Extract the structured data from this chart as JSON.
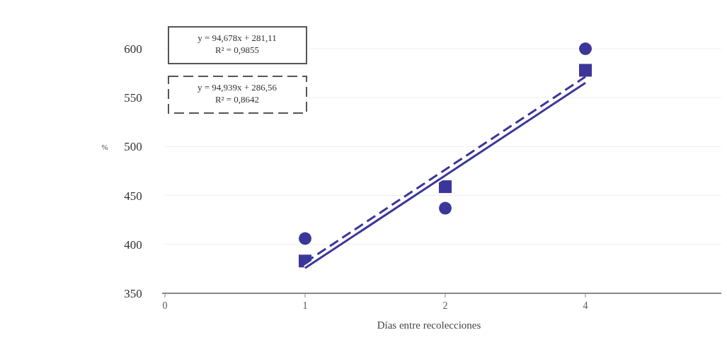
{
  "chart_data": {
    "type": "scatter",
    "xlabel": "Días entre recolecciones",
    "ylabel": "%",
    "categories": [
      "0",
      "1",
      "2",
      "4"
    ],
    "ylim": [
      350,
      600
    ],
    "yticks": [
      350,
      400,
      450,
      500,
      550,
      600
    ],
    "grid": "y",
    "series": [
      {
        "marker": "circle",
        "color": "#3b3699",
        "x": [
          "1",
          "2",
          "4"
        ],
        "values": [
          406,
          437,
          600
        ]
      },
      {
        "marker": "square",
        "color": "#3b3699",
        "x": [
          "1",
          "2",
          "4"
        ],
        "values": [
          383,
          459,
          578
        ]
      },
      {
        "type": "line",
        "line_style": "solid",
        "color": "#3b3699",
        "x": [
          "1",
          "4"
        ],
        "values": [
          375.8,
          565.1
        ]
      },
      {
        "type": "line",
        "line_style": "dashed",
        "color": "#3b3699",
        "x": [
          "1",
          "4"
        ],
        "values": [
          381.5,
          571.4
        ]
      }
    ],
    "annotations": [
      "y = 94,678x + 281,11",
      "R² = 0,9855",
      "y = 94,939x + 286,56",
      "R² = 0,8642"
    ]
  }
}
